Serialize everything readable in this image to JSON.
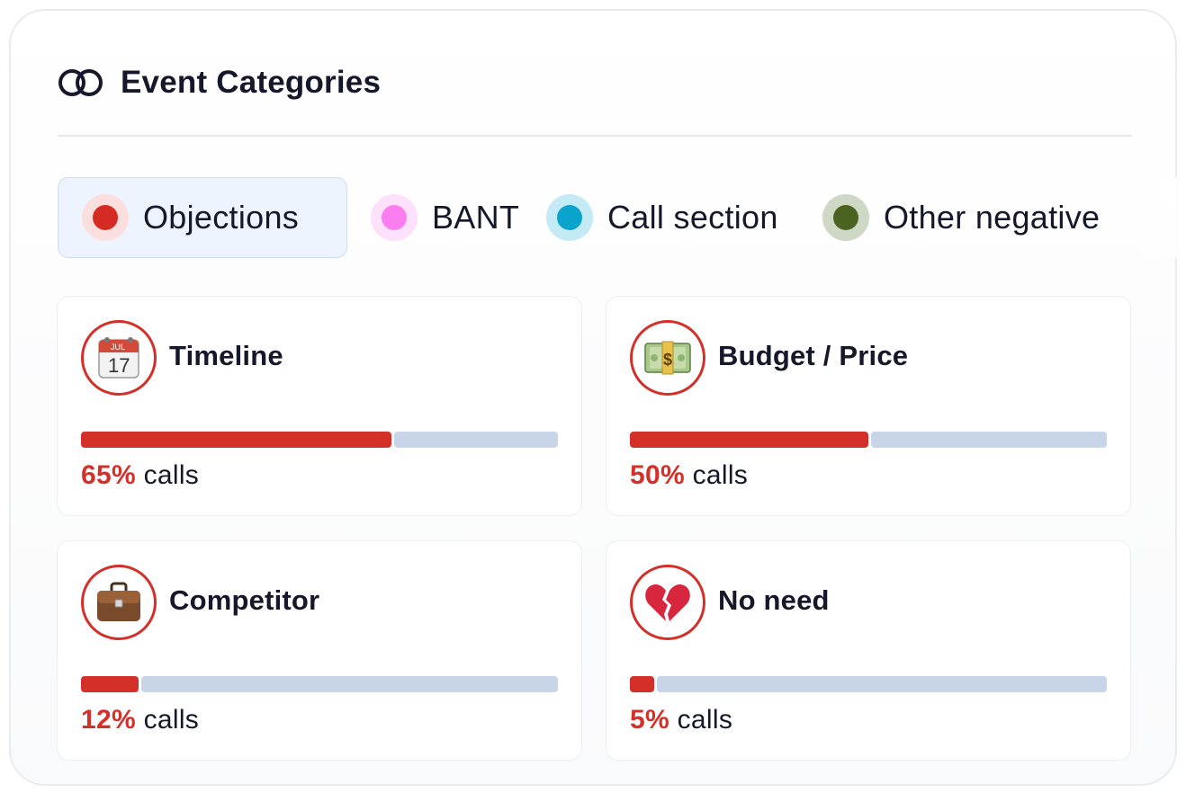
{
  "header": {
    "title": "Event Categories",
    "icon": "rings-icon"
  },
  "tabs": [
    {
      "label": "Objections",
      "dot_color": "#d52b22",
      "halo_color": "#fbdede",
      "active": true
    },
    {
      "label": "BANT",
      "dot_color": "#fb7ef0",
      "halo_color": "#fde0fa",
      "active": false
    },
    {
      "label": "Call section",
      "dot_color": "#0aa3cc",
      "halo_color": "#c4eaf5",
      "active": false
    },
    {
      "label": "Other negative",
      "dot_color": "#4a6320",
      "halo_color": "#cfd8c4",
      "active": false
    }
  ],
  "categories": [
    {
      "name": "Timeline",
      "icon": "calendar-icon",
      "percent": 65,
      "percent_label": "65%",
      "suffix": "calls"
    },
    {
      "name": "Budget / Price",
      "icon": "money-icon",
      "percent": 50,
      "percent_label": "50%",
      "suffix": "calls"
    },
    {
      "name": "Competitor",
      "icon": "briefcase-icon",
      "percent": 12,
      "percent_label": "12%",
      "suffix": "calls"
    },
    {
      "name": "No need",
      "icon": "broken-heart-icon",
      "percent": 5,
      "percent_label": "5%",
      "suffix": "calls"
    }
  ],
  "calendar": {
    "month": "JUL",
    "day": "17"
  },
  "colors": {
    "accent": "#d3302a",
    "track": "#c8d5e8",
    "text": "#15172b"
  }
}
